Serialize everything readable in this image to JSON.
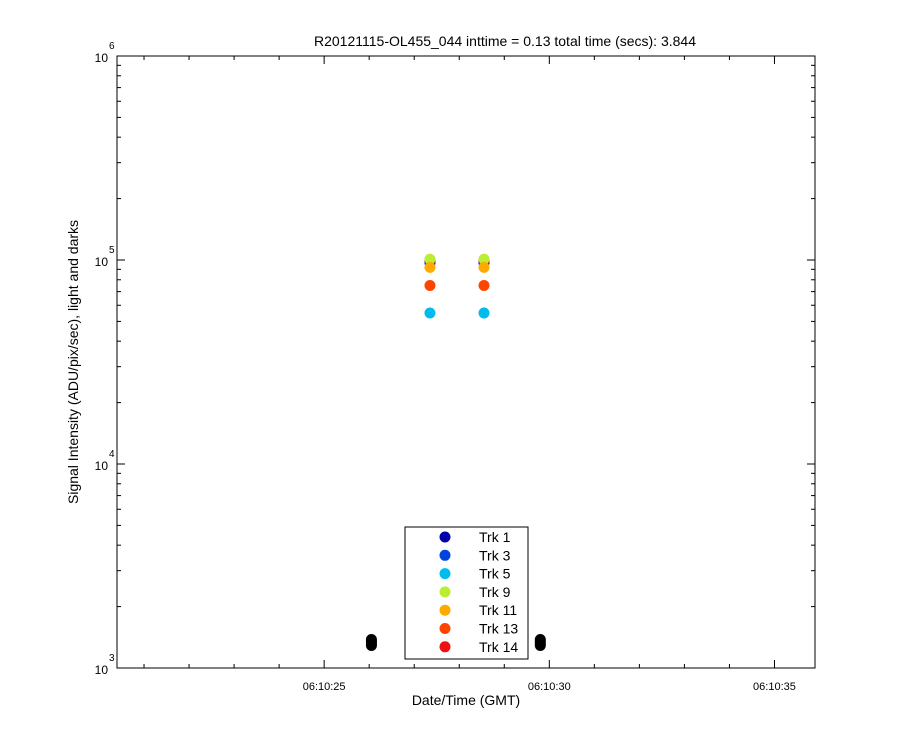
{
  "chart_data": {
    "type": "scatter",
    "title": "R20121115-OL455_044 inttime = 0.13 total time (secs): 3.844",
    "xlabel": "Date/Time (GMT)",
    "ylabel": "Signal Intensity (ADU/pix/sec), light and darks",
    "xlim": [
      "06:10:20.4",
      "06:10:35.9"
    ],
    "ylim": [
      1000,
      1000000
    ],
    "yscale": "log",
    "x_ticks": [
      "06:10:25",
      "06:10:30",
      "06:10:35"
    ],
    "y_tick_bases": [
      "10",
      "10",
      "10",
      "10"
    ],
    "y_tick_exponents": [
      "3",
      "4",
      "5",
      "6"
    ],
    "y_tick_values": [
      1000,
      10000,
      100000,
      1000000
    ],
    "grid": false,
    "legend_position": "bottom-center",
    "series": [
      {
        "name": "Trk 1",
        "color": "#0000aa",
        "points": [
          [
            "06:10:27.35",
            97000
          ],
          [
            "06:10:28.55",
            97000
          ]
        ]
      },
      {
        "name": "Trk 3",
        "color": "#0044dd",
        "points": [
          [
            "06:10:27.35",
            98000
          ],
          [
            "06:10:28.55",
            98000
          ]
        ]
      },
      {
        "name": "Trk 5",
        "color": "#00bbee",
        "points": [
          [
            "06:10:27.35",
            55000
          ],
          [
            "06:10:28.55",
            55000
          ]
        ]
      },
      {
        "name": "Trk 9",
        "color": "#bbee33",
        "points": [
          [
            "06:10:27.35",
            101000
          ],
          [
            "06:10:28.55",
            101000
          ]
        ]
      },
      {
        "name": "Trk 11",
        "color": "#ffaa00",
        "points": [
          [
            "06:10:27.35",
            92000
          ],
          [
            "06:10:28.55",
            92000
          ]
        ]
      },
      {
        "name": "Trk 13",
        "color": "#ff4400",
        "points": [
          [
            "06:10:27.35",
            75000
          ],
          [
            "06:10:28.55",
            75000
          ]
        ]
      },
      {
        "name": "Trk 14",
        "color": "#ee1111",
        "points": [
          [
            "06:10:27.35",
            100000
          ],
          [
            "06:10:28.55",
            100000
          ]
        ]
      }
    ],
    "darks": {
      "color": "#000000",
      "points": [
        [
          "06:10:26.05",
          1290
        ],
        [
          "06:10:26.05",
          1320
        ],
        [
          "06:10:26.05",
          1350
        ],
        [
          "06:10:26.05",
          1380
        ],
        [
          "06:10:29.80",
          1290
        ],
        [
          "06:10:29.80",
          1320
        ],
        [
          "06:10:29.80",
          1350
        ],
        [
          "06:10:29.80",
          1380
        ]
      ]
    }
  }
}
